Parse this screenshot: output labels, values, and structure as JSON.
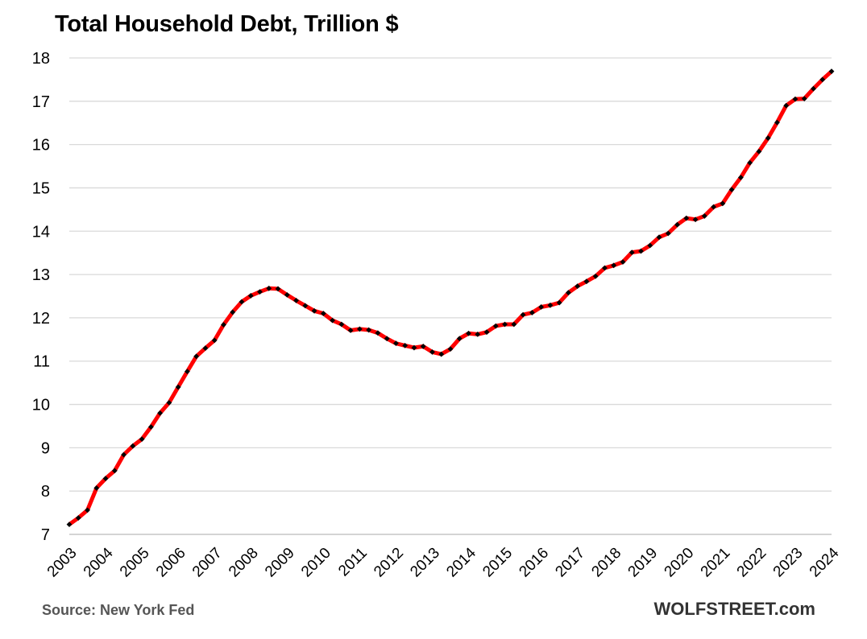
{
  "chart_data": {
    "type": "line",
    "title": "Total Household Debt, Trillion $",
    "xlabel": "",
    "ylabel": "",
    "xlim": [
      2003,
      2024
    ],
    "ylim": [
      7,
      18
    ],
    "y_ticks": [
      7,
      8,
      9,
      10,
      11,
      12,
      13,
      14,
      15,
      16,
      17,
      18
    ],
    "x_tick_labels": [
      "2003",
      "2004",
      "2005",
      "2006",
      "2007",
      "2008",
      "2009",
      "2010",
      "2011",
      "2012",
      "2013",
      "2014",
      "2015",
      "2016",
      "2017",
      "2018",
      "2019",
      "2020",
      "2021",
      "2022",
      "2023",
      "2024"
    ],
    "grid": "horizontal",
    "legend": "none",
    "line_color": "#ff0000",
    "marker_color": "#000000",
    "grid_color": "#d9d9d9",
    "series": [
      {
        "x": [
          2003.0,
          2003.25,
          2003.5,
          2003.75,
          2004.0,
          2004.25,
          2004.5,
          2004.75,
          2005.0,
          2005.25,
          2005.5,
          2005.75,
          2006.0,
          2006.25,
          2006.5,
          2006.75,
          2007.0,
          2007.25,
          2007.5,
          2007.75,
          2008.0,
          2008.25,
          2008.5,
          2008.75,
          2009.0,
          2009.25,
          2009.5,
          2009.75,
          2010.0,
          2010.25,
          2010.5,
          2010.75,
          2011.0,
          2011.25,
          2011.5,
          2011.75,
          2012.0,
          2012.25,
          2012.5,
          2012.75,
          2013.0,
          2013.25,
          2013.5,
          2013.75,
          2014.0,
          2014.25,
          2014.5,
          2014.75,
          2015.0,
          2015.25,
          2015.5,
          2015.75,
          2016.0,
          2016.25,
          2016.5,
          2016.75,
          2017.0,
          2017.25,
          2017.5,
          2017.75,
          2018.0,
          2018.25,
          2018.5,
          2018.75,
          2019.0,
          2019.25,
          2019.5,
          2019.75,
          2020.0,
          2020.25,
          2020.5,
          2020.75,
          2021.0,
          2021.25,
          2021.5,
          2021.75,
          2022.0,
          2022.25,
          2022.5,
          2022.75,
          2023.0,
          2023.25,
          2023.5,
          2023.75,
          2024.0
        ],
        "values": [
          7.23,
          7.38,
          7.56,
          8.07,
          8.29,
          8.47,
          8.84,
          9.04,
          9.2,
          9.48,
          9.8,
          10.04,
          10.4,
          10.76,
          11.11,
          11.3,
          11.48,
          11.84,
          12.13,
          12.37,
          12.51,
          12.6,
          12.68,
          12.67,
          12.53,
          12.4,
          12.28,
          12.16,
          12.1,
          11.94,
          11.85,
          11.71,
          11.74,
          11.72,
          11.65,
          11.52,
          11.41,
          11.36,
          11.31,
          11.34,
          11.21,
          11.16,
          11.28,
          11.52,
          11.64,
          11.62,
          11.67,
          11.81,
          11.85,
          11.85,
          12.07,
          12.12,
          12.25,
          12.29,
          12.35,
          12.58,
          12.73,
          12.84,
          12.96,
          13.15,
          13.21,
          13.29,
          13.51,
          13.54,
          13.67,
          13.86,
          13.95,
          14.15,
          14.3,
          14.27,
          14.35,
          14.56,
          14.64,
          14.96,
          15.24,
          15.58,
          15.84,
          16.15,
          16.51,
          16.9,
          17.05,
          17.06,
          17.29,
          17.5,
          17.69
        ]
      }
    ]
  },
  "source": "Source: New York Fed",
  "brand": "WOLFSTREET.com"
}
